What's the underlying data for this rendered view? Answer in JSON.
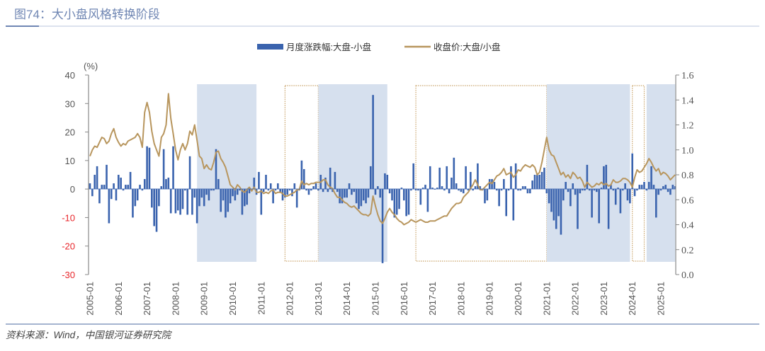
{
  "header": {
    "title": "图74：大小盘风格转换阶段"
  },
  "source": "资料来源：Wind，中国银河证券研究院",
  "colors": {
    "bar": "#3a63ae",
    "line": "#b8965e",
    "shade": "#d6e0ee",
    "dotted": "#c9a36a",
    "negative_tick": "#e8262b"
  },
  "chart_data": {
    "type": "bar+line",
    "title": "图74：大小盘风格转换阶段",
    "start_month": "2005-01",
    "legend": [
      {
        "name": "月度涨跌幅:大盘-小盘",
        "kind": "bar",
        "axis": "left"
      },
      {
        "name": "收盘价:大盘/小盘",
        "kind": "line",
        "axis": "right"
      }
    ],
    "legend_placement": "top-center",
    "left_axis": {
      "label": "(%)",
      "ylim": [
        -30,
        40
      ],
      "ticks": [
        "40",
        "30",
        "20",
        "10",
        "0",
        "-10",
        "-20",
        "-30"
      ]
    },
    "right_axis": {
      "ylim": [
        0,
        1.6
      ],
      "ticks": [
        "1.6",
        "1.4",
        "1.2",
        "1.0",
        "0.8",
        "0.6",
        "0.4",
        "0.2",
        "0.0"
      ]
    },
    "x_ticks": [
      "2005-01",
      "2006-01",
      "2007-01",
      "2008-01",
      "2009-01",
      "2010-01",
      "2011-01",
      "2012-01",
      "2013-01",
      "2014-01",
      "2015-01",
      "2016-01",
      "2017-01",
      "2018-01",
      "2019-01",
      "2020-01",
      "2021-01",
      "2022-01",
      "2023-01",
      "2024-01",
      "2025-01"
    ],
    "regions": [
      {
        "start": "2008-10",
        "end": "2010-11",
        "style": "shaded"
      },
      {
        "start": "2011-11",
        "end": "2013-01",
        "style": "dotted"
      },
      {
        "start": "2013-01",
        "end": "2015-06",
        "style": "shaded"
      },
      {
        "start": "2016-06",
        "end": "2021-01",
        "style": "dotted"
      },
      {
        "start": "2021-01",
        "end": "2023-12",
        "style": "shaded"
      },
      {
        "start": "2024-01",
        "end": "2024-06",
        "style": "dotted"
      },
      {
        "start": "2024-07",
        "end": "2025-07",
        "style": "shaded"
      }
    ],
    "bar_values": [
      2,
      -2.5,
      5,
      8,
      -5,
      1.5,
      1.5,
      8.5,
      -12,
      -3.5,
      2,
      -4,
      5,
      4,
      -0.5,
      1.5,
      1.5,
      6,
      -10,
      -6,
      -4,
      1.5,
      -0.5,
      3.5,
      15,
      14.5,
      -6.5,
      -13,
      -15,
      -6,
      1,
      14,
      3.5,
      4,
      -8.5,
      15,
      -8.5,
      -7.5,
      -9,
      -7,
      -0.5,
      -9,
      11.5,
      -9,
      -3,
      -12,
      -6,
      -3,
      -6,
      -2,
      -4,
      -0.5,
      -0.5,
      14,
      3.5,
      -8,
      -4,
      -10,
      -8,
      -5,
      -2.5,
      -4,
      -2,
      -0.5,
      -9,
      -6,
      -5.5,
      -1.5,
      -0.5,
      4,
      -2,
      6,
      -9,
      -1,
      5,
      -0.5,
      2,
      -5,
      -0.5,
      2,
      -1,
      -4,
      -3,
      -2,
      -0.5,
      -2.5,
      2,
      -6.5,
      -0.5,
      10,
      7,
      -0.5,
      -2,
      -0.5,
      1,
      2,
      -0.5,
      5,
      -1,
      4,
      -1,
      7.5,
      -1,
      6,
      -1,
      -5,
      -5,
      -3,
      -3,
      2,
      -2,
      -1,
      -5,
      -7,
      -6,
      -4,
      -5,
      -3,
      8,
      33,
      -2,
      1,
      -3,
      -26,
      5.5,
      5,
      -1.5,
      -4,
      -10,
      -9,
      -7,
      0.5,
      -4,
      -9.5,
      -9,
      -0.5,
      9,
      -0.5,
      -0.5,
      -5.5,
      0.5,
      1.5,
      -8,
      8,
      0.5,
      -0.2,
      0.5,
      7.5,
      1,
      -0.5,
      8,
      -1.5,
      4,
      11,
      2,
      -0.5,
      -1,
      -1.5,
      8,
      -0.5,
      6,
      -0.5,
      1,
      9,
      1,
      -0.5,
      -5,
      -4,
      3.5,
      3.5,
      2.5,
      -0.5,
      -6,
      -0.5,
      3.5,
      -9.5,
      -0.5,
      8,
      -11,
      9,
      -0.5,
      -0.5,
      1,
      1,
      -1.5,
      -1.5,
      3,
      5,
      5,
      5,
      6,
      7.5,
      -1.5,
      -5,
      -8,
      -11,
      -14,
      -9.5,
      -16,
      -4,
      2.5,
      -1,
      -6,
      2,
      -2,
      -14,
      -1.5,
      -0.5,
      -0.5,
      8.5,
      -0.5,
      -10,
      -0.5,
      -1,
      -12,
      0.5,
      8,
      8.5,
      -14,
      1.5,
      -0.5,
      -5.5,
      0.5,
      -8.5,
      -0.5,
      2,
      -4,
      -5,
      12.5,
      -2.5,
      -0.5,
      1.5,
      1.5,
      2.5,
      -0.5,
      2.5,
      8,
      1.5,
      -10,
      -2,
      -0.5,
      1,
      1.5,
      -1,
      -2,
      1.5,
      1
    ],
    "line_values": [
      0.95,
      1.0,
      1.03,
      1.02,
      1.06,
      1.1,
      1.09,
      1.05,
      1.07,
      1.13,
      1.17,
      1.1,
      1.06,
      1.03,
      1.05,
      1.04,
      1.07,
      1.08,
      1.09,
      1.1,
      1.13,
      1.1,
      1.02,
      1.3,
      1.38,
      1.3,
      1.15,
      1.05,
      1.0,
      0.95,
      1.1,
      1.13,
      1.2,
      1.45,
      1.25,
      1.13,
      1.0,
      0.92,
      1.0,
      1.05,
      1.0,
      1.05,
      1.15,
      1.12,
      1.2,
      1.08,
      0.95,
      0.93,
      0.85,
      0.88,
      0.85,
      0.84,
      0.9,
      0.98,
      0.99,
      0.93,
      0.9,
      0.86,
      0.79,
      0.72,
      0.7,
      0.68,
      0.72,
      0.7,
      0.67,
      0.66,
      0.68,
      0.7,
      0.67,
      0.7,
      0.66,
      0.66,
      0.67,
      0.65,
      0.66,
      0.65,
      0.67,
      0.68,
      0.65,
      0.66,
      0.66,
      0.65,
      0.63,
      0.63,
      0.64,
      0.65,
      0.66,
      0.68,
      0.68,
      0.75,
      0.72,
      0.73,
      0.72,
      0.73,
      0.73,
      0.74,
      0.74,
      0.74,
      0.76,
      0.76,
      0.72,
      0.7,
      0.69,
      0.65,
      0.62,
      0.62,
      0.6,
      0.58,
      0.57,
      0.55,
      0.54,
      0.55,
      0.53,
      0.51,
      0.49,
      0.48,
      0.48,
      0.47,
      0.49,
      0.63,
      0.55,
      0.48,
      0.43,
      0.41,
      0.45,
      0.5,
      0.53,
      0.5,
      0.48,
      0.45,
      0.43,
      0.42,
      0.4,
      0.41,
      0.42,
      0.44,
      0.43,
      0.42,
      0.43,
      0.44,
      0.43,
      0.42,
      0.42,
      0.43,
      0.43,
      0.43,
      0.44,
      0.45,
      0.46,
      0.47,
      0.47,
      0.5,
      0.53,
      0.55,
      0.57,
      0.57,
      0.58,
      0.62,
      0.64,
      0.66,
      0.69,
      0.72,
      0.76,
      0.72,
      0.68,
      0.68,
      0.7,
      0.72,
      0.74,
      0.73,
      0.76,
      0.79,
      0.8,
      0.82,
      0.85,
      0.8,
      0.81,
      0.82,
      0.78,
      0.8,
      0.84,
      0.83,
      0.86,
      0.88,
      0.87,
      0.86,
      0.88,
      0.86,
      0.8,
      0.82,
      0.9,
      1.0,
      1.1,
      1.0,
      0.96,
      0.95,
      0.9,
      0.85,
      0.8,
      0.82,
      0.78,
      0.8,
      0.77,
      0.82,
      0.8,
      0.77,
      0.78,
      0.75,
      0.7,
      0.74,
      0.72,
      0.7,
      0.71,
      0.73,
      0.72,
      0.74,
      0.72,
      0.73,
      0.71,
      0.72,
      0.76,
      0.74,
      0.74,
      0.75,
      0.77,
      0.77,
      0.76,
      0.74,
      0.7,
      0.78,
      0.84,
      0.82,
      0.83,
      0.86,
      0.89,
      0.93,
      0.9,
      0.86,
      0.83,
      0.85,
      0.8,
      0.82,
      0.81,
      0.79,
      0.76,
      0.78,
      0.8
    ]
  }
}
